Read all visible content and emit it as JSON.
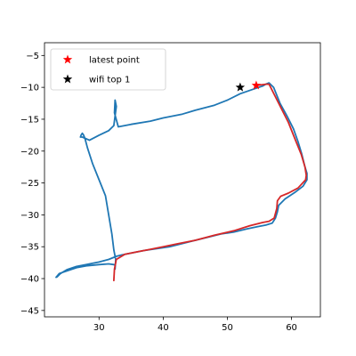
{
  "chart_data": {
    "type": "line",
    "xlim": [
      21.5,
      64.5
    ],
    "ylim": [
      -46,
      -3
    ],
    "xticks": [
      30,
      40,
      50,
      60
    ],
    "yticks": [
      -5,
      -10,
      -15,
      -20,
      -25,
      -30,
      -35,
      -40,
      -45
    ],
    "grid": false,
    "legend_position": "top-left",
    "legend": [
      {
        "label": "latest point",
        "marker": "star",
        "color": "#ff0000"
      },
      {
        "label": "wifi top 1",
        "marker": "star",
        "color": "#000000"
      }
    ],
    "series": [
      {
        "role": "trajectory",
        "color": "#1f77b4",
        "x": [
          32.5,
          32.6,
          32.3,
          32.0,
          31.5,
          31.0,
          30.0,
          29.0,
          28.2,
          27.8,
          27.6,
          27.4,
          27.2,
          27.1,
          27.4,
          28.5,
          30.0,
          31.5,
          32.3,
          32.5,
          32.7,
          32.5,
          32.4,
          33.0,
          35.0,
          38.0,
          40.0,
          43.0,
          45.0,
          48.0,
          50.0,
          52.0,
          54.0,
          55.5,
          56.0,
          56.5,
          57.2,
          58.2,
          59.3,
          60.3,
          61.0,
          61.6,
          62.1,
          62.4,
          62.4,
          61.8,
          60.5,
          59.0,
          58.0,
          57.8,
          57.5,
          57.0,
          56.0,
          55.0,
          53.0,
          51.0,
          49.0,
          47.0,
          45.0,
          43.0,
          41.0,
          39.0,
          37.0,
          35.0,
          33.5,
          32.7,
          31.5,
          30.0,
          28.0,
          26.5,
          25.0,
          24.0,
          23.5,
          23.3,
          23.8,
          25.0,
          26.5,
          28.0,
          30.0,
          31.5,
          32.3,
          32.5
        ],
        "y": [
          -38.5,
          -37.0,
          -35.5,
          -33.0,
          -30.0,
          -27.0,
          -24.5,
          -22.0,
          -19.5,
          -18.0,
          -17.5,
          -17.2,
          -17.5,
          -17.8,
          -17.8,
          -18.3,
          -17.5,
          -16.8,
          -16.0,
          -14.5,
          -13.0,
          -12.0,
          -14.0,
          -16.2,
          -15.8,
          -15.3,
          -14.8,
          -14.2,
          -13.6,
          -12.8,
          -12.0,
          -11.0,
          -10.3,
          -9.8,
          -9.5,
          -9.3,
          -10.0,
          -12.5,
          -14.5,
          -16.5,
          -18.5,
          -20.5,
          -22.5,
          -23.5,
          -24.5,
          -25.5,
          -26.5,
          -27.5,
          -28.5,
          -29.5,
          -30.5,
          -31.3,
          -31.6,
          -31.8,
          -32.2,
          -32.7,
          -33.0,
          -33.5,
          -34.0,
          -34.5,
          -35.0,
          -35.3,
          -35.6,
          -36.0,
          -36.3,
          -36.5,
          -37.0,
          -37.4,
          -37.8,
          -38.1,
          -38.6,
          -39.2,
          -39.7,
          -39.8,
          -39.2,
          -38.8,
          -38.3,
          -38.0,
          -37.8,
          -37.7,
          -37.8,
          -37.9
        ]
      },
      {
        "role": "trajectory-recent",
        "color": "#d62728",
        "x": [
          54.5,
          56.0,
          56.5,
          57.0,
          58.0,
          59.5,
          60.7,
          61.5,
          62.1,
          62.3,
          62.2,
          61.0,
          59.5,
          58.3,
          57.8,
          57.7,
          57.3,
          56.5,
          55.5,
          53.5,
          51.0,
          48.0,
          45.0,
          42.0,
          40.0,
          38.0,
          36.0,
          34.0,
          32.7,
          32.4,
          32.3
        ],
        "y": [
          -9.7,
          -9.5,
          -9.5,
          -10.5,
          -12.5,
          -15.5,
          -18.5,
          -20.5,
          -22.5,
          -23.8,
          -24.5,
          -25.8,
          -26.6,
          -27.1,
          -27.8,
          -29.0,
          -30.5,
          -31.0,
          -31.2,
          -31.7,
          -32.5,
          -33.2,
          -34.0,
          -34.6,
          -35.0,
          -35.4,
          -35.8,
          -36.2,
          -37.0,
          -38.5,
          -40.3
        ]
      }
    ],
    "markers": [
      {
        "name": "latest point",
        "x": 54.5,
        "y": -9.7,
        "color": "#ff0000"
      },
      {
        "name": "wifi top 1",
        "x": 52.0,
        "y": -10.0,
        "color": "#000000"
      }
    ]
  }
}
